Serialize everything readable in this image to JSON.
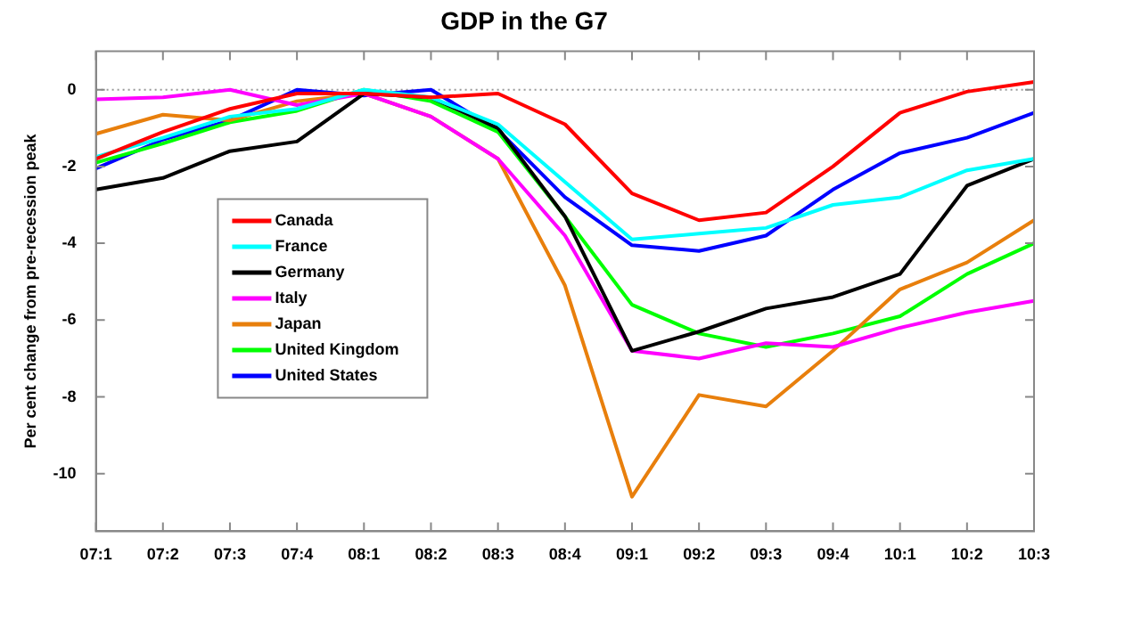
{
  "chart_data": {
    "type": "line",
    "title": "GDP in the G7",
    "ylabel": "Per cent change from pre-recession peak",
    "categories": [
      "07:1",
      "07:2",
      "07:3",
      "07:4",
      "08:1",
      "08:2",
      "08:3",
      "08:4",
      "09:1",
      "09:2",
      "09:3",
      "09:4",
      "10:1",
      "10:2",
      "10:3"
    ],
    "series": [
      {
        "name": "Canada",
        "color": "#ff0000",
        "values": [
          -1.8,
          -1.1,
          -0.5,
          -0.1,
          -0.1,
          -0.2,
          -0.1,
          -0.9,
          -2.7,
          -3.4,
          -3.2,
          -2.0,
          -0.6,
          -0.05,
          0.2
        ]
      },
      {
        "name": "France",
        "color": "#00ffff",
        "values": [
          -1.75,
          -1.25,
          -0.7,
          -0.5,
          0,
          -0.2,
          -0.9,
          -2.4,
          -3.9,
          -3.75,
          -3.6,
          -3.0,
          -2.8,
          -2.1,
          -1.8
        ]
      },
      {
        "name": "Germany",
        "color": "#000000",
        "values": [
          -2.6,
          -2.3,
          -1.6,
          -1.35,
          -0.1,
          -0.2,
          -1.0,
          -3.3,
          -6.8,
          -6.3,
          -5.7,
          -5.4,
          -4.8,
          -2.5,
          -1.8
        ]
      },
      {
        "name": "Italy",
        "color": "#ff00ff",
        "values": [
          -0.25,
          -0.2,
          0,
          -0.4,
          -0.1,
          -0.7,
          -1.8,
          -3.8,
          -6.8,
          -7.0,
          -6.6,
          -6.7,
          -6.2,
          -5.8,
          -5.5
        ]
      },
      {
        "name": "Japan",
        "color": "#e87f0c",
        "values": [
          -1.15,
          -0.65,
          -0.8,
          -0.3,
          -0.1,
          -0.7,
          -1.8,
          -5.1,
          -10.6,
          -7.95,
          -8.25,
          -6.8,
          -5.2,
          -4.5,
          -3.4
        ]
      },
      {
        "name": "United Kingdom",
        "color": "#00ff00",
        "values": [
          -1.9,
          -1.4,
          -0.85,
          -0.55,
          0,
          -0.3,
          -1.1,
          -3.3,
          -5.6,
          -6.35,
          -6.7,
          -6.35,
          -5.9,
          -4.8,
          -4.0
        ]
      },
      {
        "name": "United States",
        "color": "#0000ff",
        "values": [
          -2.05,
          -1.3,
          -0.8,
          0,
          -0.15,
          0,
          -1.05,
          -2.8,
          -4.05,
          -4.2,
          -3.8,
          -2.6,
          -1.65,
          -1.25,
          -0.6
        ]
      }
    ],
    "ylim": [
      -11.5,
      1
    ],
    "yticks": [
      -10,
      -8,
      -6,
      -4,
      -2,
      0
    ],
    "ref_lines": [
      {
        "axis": "y",
        "value": 0,
        "color": "#999999",
        "line_style": "dotted"
      }
    ],
    "grid": false,
    "legend": "left",
    "marker": "none",
    "line_style": "solid"
  }
}
